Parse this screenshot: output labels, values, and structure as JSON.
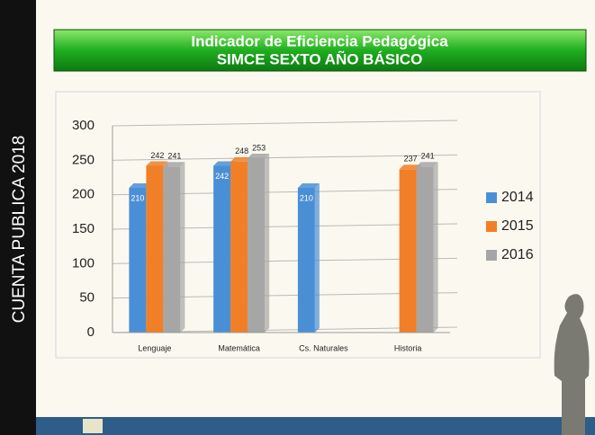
{
  "side_label": "CUENTA PUBLICA 2018",
  "chart_data": {
    "type": "bar",
    "title": "Indicador de Eficiencia Pedagógica",
    "subtitle": "SIMCE  SEXTO AÑO BÁSICO",
    "categories": [
      "Lenguaje",
      "Matemática",
      "Cs. Naturales",
      "Historia"
    ],
    "series": [
      {
        "name": "2014",
        "color": "#4a8fd6",
        "values": [
          210,
          242,
          210,
          null
        ]
      },
      {
        "name": "2015",
        "color": "#f07f27",
        "values": [
          242,
          248,
          null,
          237
        ]
      },
      {
        "name": "2016",
        "color": "#a6a6a6",
        "values": [
          241,
          253,
          null,
          241
        ]
      }
    ],
    "ylim": [
      0,
      300
    ],
    "yticks": [
      0,
      50,
      100,
      150,
      200,
      250,
      300
    ],
    "grid": true,
    "legend": "right"
  }
}
